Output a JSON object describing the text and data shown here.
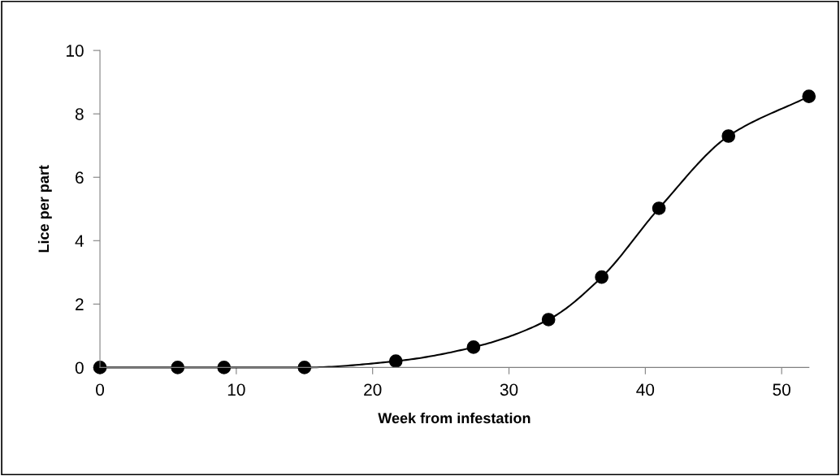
{
  "chart_data": {
    "type": "line",
    "xlabel": "Week from infestation",
    "ylabel": "Lice per part",
    "x": [
      0,
      5.7,
      9.1,
      15,
      21.7,
      27.4,
      32.9,
      36.8,
      41,
      46.1,
      52
    ],
    "values": [
      0,
      0,
      0,
      0,
      0.2,
      0.64,
      1.51,
      2.85,
      5.02,
      7.3,
      8.55
    ],
    "color": "#000000",
    "marker": "circle",
    "line_style": "solid",
    "xlim": [
      0,
      52
    ],
    "ylim": [
      0,
      10
    ],
    "xticks": [
      0,
      10,
      20,
      30,
      40,
      50
    ],
    "yticks": [
      0,
      2,
      4,
      6,
      8,
      10
    ],
    "grid": false,
    "legend": false
  }
}
